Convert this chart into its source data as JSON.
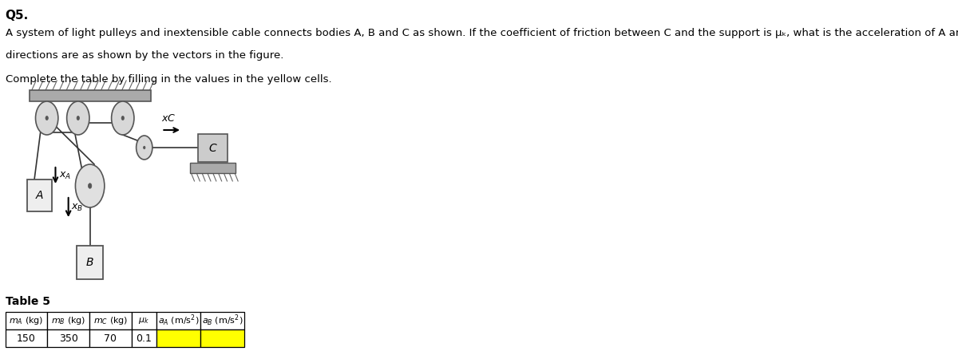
{
  "title": "Q5.",
  "desc1": "A system of light pulleys and inextensible cable connects bodies A, B and C as shown. If the coefficient of friction between C and the support is μₖ, what is the acceleration of A and B? The positive",
  "desc2": "directions are as shown by the vectors in the figure.",
  "instruction": "Complete the table by filling in the values in the yellow cells.",
  "table_title": "Table 5",
  "col_headers_math": [
    "$m_A$ (kg)",
    "$m_B$ (kg)",
    "$m_C$ (kg)",
    "$\\mu_k$",
    "$a_A$ (m/s$^2$)",
    "$a_B$ (m/s$^2$)"
  ],
  "row_data": [
    "150",
    "350",
    "70",
    "0.1",
    "",
    ""
  ],
  "yellow_cols": [
    4,
    5
  ],
  "bg_color": "#ffffff",
  "ceiling_color": "#aaaaaa",
  "pulley_face": "#d8d8d8",
  "pulley_edge": "#666666",
  "bracket_color": "#888888",
  "box_face": "#eeeeee",
  "box_edge": "#555555",
  "surface_color": "#aaaaaa",
  "cable_color": "#333333",
  "hatch_color": "#666666"
}
